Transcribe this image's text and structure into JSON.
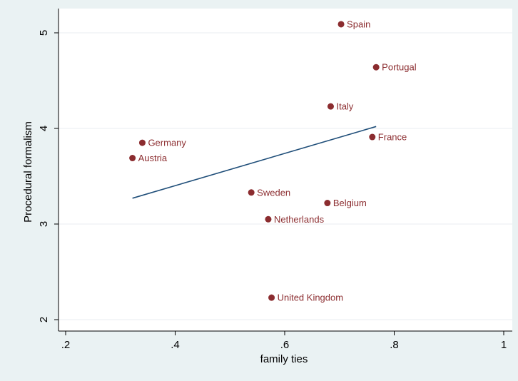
{
  "chart_data": {
    "type": "scatter",
    "xlabel": "family ties",
    "ylabel": "Procedural formalism",
    "xlim": [
      0.2,
      1.0
    ],
    "ylim": [
      2.0,
      5.1
    ],
    "xticks": [
      0.2,
      0.4,
      0.6,
      0.8,
      1.0
    ],
    "xtick_labels": [
      ".2",
      ".4",
      ".6",
      ".8",
      "1"
    ],
    "yticks": [
      2,
      3,
      4,
      5
    ],
    "ytick_labels": [
      "2",
      "3",
      "4",
      "5"
    ],
    "grid": "horizontal",
    "legend": "none",
    "points": [
      {
        "label": "Spain",
        "x": 0.703,
        "y": 5.09
      },
      {
        "label": "Portugal",
        "x": 0.767,
        "y": 4.64
      },
      {
        "label": "Italy",
        "x": 0.684,
        "y": 4.23
      },
      {
        "label": "France",
        "x": 0.76,
        "y": 3.91
      },
      {
        "label": "Germany",
        "x": 0.34,
        "y": 3.85
      },
      {
        "label": "Austria",
        "x": 0.322,
        "y": 3.69
      },
      {
        "label": "Sweden",
        "x": 0.539,
        "y": 3.33
      },
      {
        "label": "Belgium",
        "x": 0.678,
        "y": 3.22
      },
      {
        "label": "Netherlands",
        "x": 0.57,
        "y": 3.05
      },
      {
        "label": "United Kingdom",
        "x": 0.576,
        "y": 2.23
      }
    ],
    "fit_line": {
      "x": [
        0.322,
        0.767
      ],
      "y": [
        3.27,
        4.02
      ]
    },
    "colors": {
      "marker": "#8b2c2f",
      "label": "#8b2c2f",
      "fit_line": "#1f4e79",
      "plot_background": "#ffffff",
      "outer_background": "#eaf2f3",
      "grid": "#e8eef0"
    }
  }
}
